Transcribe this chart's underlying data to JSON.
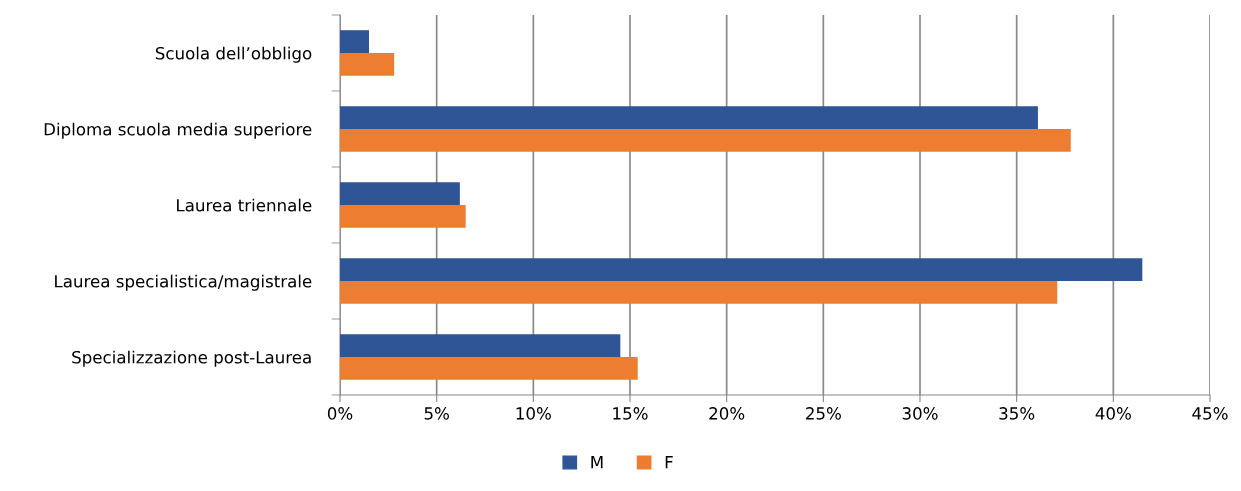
{
  "chart_data": {
    "type": "bar",
    "orientation": "horizontal",
    "categories": [
      "Scuola dell’obbligo",
      "Diploma scuola media superiore",
      "Laurea triennale",
      "Laurea specialistica/magistrale",
      "Specializzazione post-Laurea"
    ],
    "series": [
      {
        "name": "M",
        "color": "#2f5597",
        "values": [
          1.5,
          36.1,
          6.2,
          41.5,
          14.5
        ]
      },
      {
        "name": "F",
        "color": "#ed7d31",
        "values": [
          2.8,
          37.8,
          6.5,
          37.1,
          15.4
        ]
      }
    ],
    "xlim": [
      0,
      45
    ],
    "xticks": [
      {
        "value": 0,
        "label": "0%"
      },
      {
        "value": 5,
        "label": "5%"
      },
      {
        "value": 10,
        "label": "10%"
      },
      {
        "value": 15,
        "label": "15%"
      },
      {
        "value": 20,
        "label": "20%"
      },
      {
        "value": 25,
        "label": "25%"
      },
      {
        "value": 30,
        "label": "30%"
      },
      {
        "value": 35,
        "label": "35%"
      },
      {
        "value": 40,
        "label": "40%"
      },
      {
        "value": 45,
        "label": "45%"
      }
    ],
    "grid": "x",
    "legend": "bottom"
  }
}
